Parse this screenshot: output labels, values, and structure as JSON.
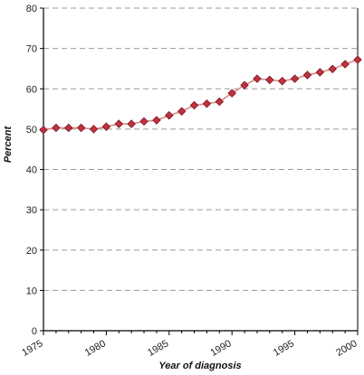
{
  "chart_data": {
    "type": "line",
    "title": "",
    "xlabel": "Year of diagnosis",
    "ylabel": "Percent",
    "xlim": [
      1975,
      2000
    ],
    "ylim": [
      0,
      80
    ],
    "x_ticks": [
      1975,
      1980,
      1985,
      1990,
      1995,
      2000
    ],
    "y_ticks": [
      0,
      10,
      20,
      30,
      40,
      50,
      60,
      70,
      80
    ],
    "grid": "horizontal dashed",
    "legend": "none",
    "series": [
      {
        "color": "#c0313f",
        "line_color": "#d98a8a",
        "x": [
          1975,
          1976,
          1977,
          1978,
          1979,
          1980,
          1981,
          1982,
          1983,
          1984,
          1985,
          1986,
          1987,
          1988,
          1989,
          1990,
          1991,
          1992,
          1993,
          1994,
          1995,
          1996,
          1997,
          1998,
          1999,
          2000
        ],
        "y": [
          49.8,
          50.3,
          50.3,
          50.3,
          50.0,
          50.6,
          51.3,
          51.3,
          51.9,
          52.2,
          53.4,
          54.4,
          55.9,
          56.3,
          56.8,
          58.9,
          60.9,
          62.5,
          62.2,
          61.9,
          62.5,
          63.4,
          64.1,
          64.9,
          66.1,
          67.2
        ]
      }
    ]
  }
}
